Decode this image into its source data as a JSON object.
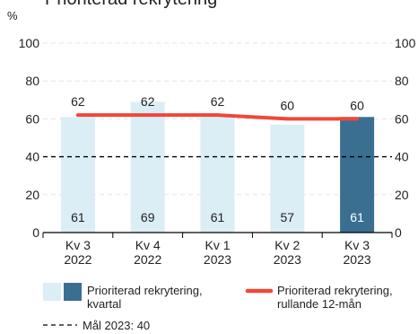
{
  "chart_data": {
    "type": "bar",
    "title": "Prioriterad rekrytering",
    "ylabel": "%",
    "ylim": [
      0,
      100
    ],
    "yticks": [
      0,
      20,
      40,
      60,
      80,
      100
    ],
    "grid": true,
    "categories": [
      [
        "Kv 3",
        "2022"
      ],
      [
        "Kv 4",
        "2022"
      ],
      [
        "Kv 1",
        "2023"
      ],
      [
        "Kv 2",
        "2023"
      ],
      [
        "Kv 3",
        "2023"
      ]
    ],
    "series": [
      {
        "name": "Prioriterad rekrytering, kvartal",
        "type": "bar",
        "values": [
          61,
          69,
          61,
          57,
          61
        ],
        "color": "#dbeef6",
        "highlight_color": "#3a6f91",
        "highlight_index": 4
      },
      {
        "name": "Prioriterad rekrytering, rullande 12-mån",
        "type": "line",
        "values": [
          62,
          62,
          62,
          60,
          60
        ],
        "color": "#f0473a"
      }
    ],
    "target": {
      "name": "Mål 2023: 40",
      "value": 40,
      "color": "#000000"
    },
    "legend": {
      "placement": "bottom",
      "bar_label": [
        "Prioriterad rekrytering,",
        "kvartal"
      ],
      "line_label": [
        "Prioriterad rekrytering,",
        "rullande 12-mån"
      ],
      "target_label": "Mål 2023: 40"
    }
  }
}
